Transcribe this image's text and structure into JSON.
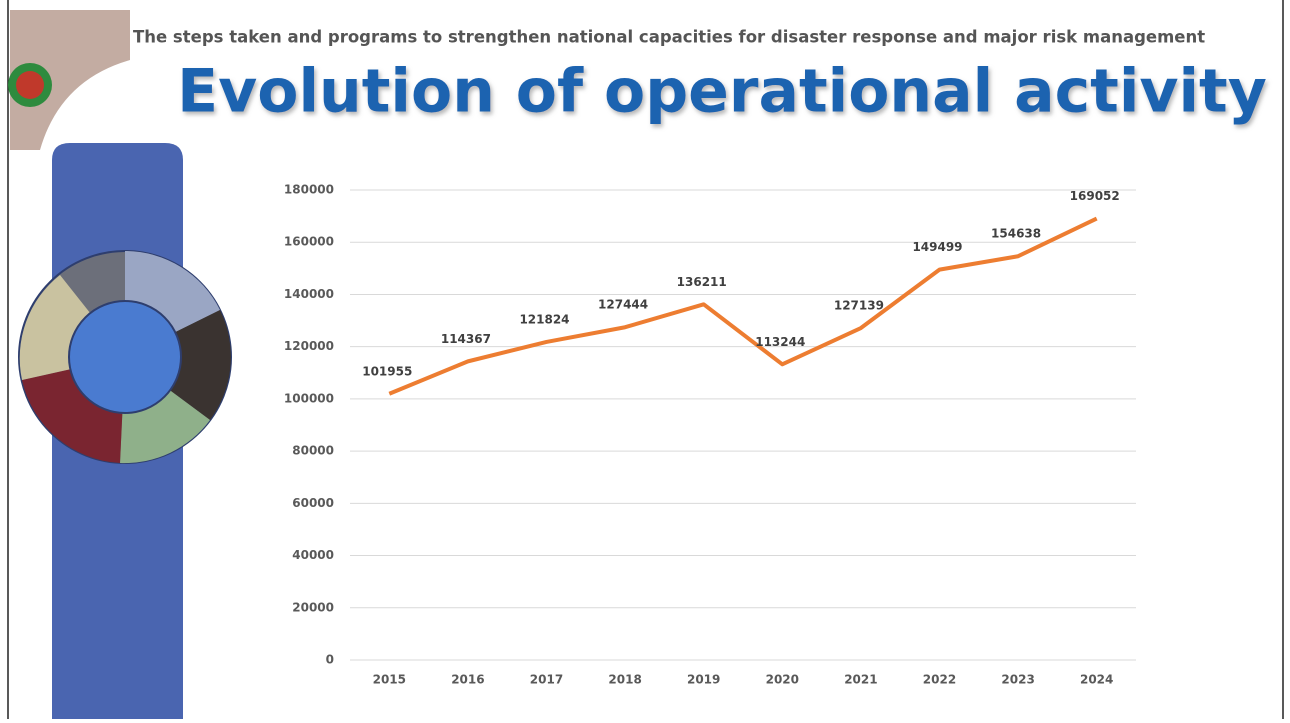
{
  "header": {
    "subtitle": "The steps taken and programs to strengthen national capacities for disaster response and major risk management",
    "title": "Evolution of operational activity"
  },
  "chart_data": {
    "type": "line",
    "categories": [
      "2015",
      "2016",
      "2017",
      "2018",
      "2019",
      "2020",
      "2021",
      "2022",
      "2023",
      "2024"
    ],
    "values": [
      101955,
      114367,
      121824,
      127444,
      136211,
      113244,
      127139,
      149499,
      154638,
      169052
    ],
    "color": "#ED7D31",
    "ylim": [
      0,
      180000
    ],
    "yticks": [
      0,
      20000,
      40000,
      60000,
      80000,
      100000,
      120000,
      140000,
      160000,
      180000
    ],
    "grid": true
  }
}
